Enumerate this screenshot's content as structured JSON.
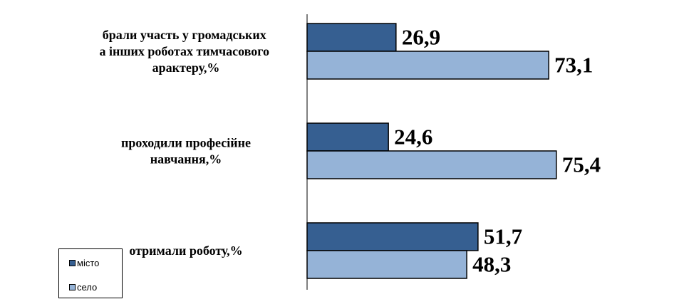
{
  "chart_data": {
    "type": "bar",
    "orientation": "horizontal",
    "categories": [
      "брали участь у громадських та інших роботах тимчасового характеру,%",
      "проходили професійне навчання,%",
      "отримали роботу,%"
    ],
    "series": [
      {
        "name": "місто",
        "values": [
          26.9,
          24.6,
          51.7
        ],
        "labels": [
          "26,9",
          "24,6",
          "51,7"
        ],
        "color": "#365f91"
      },
      {
        "name": "село",
        "values": [
          73.1,
          75.4,
          48.3
        ],
        "labels": [
          "73,1",
          "75,4",
          "48,3"
        ],
        "color": "#95b3d7"
      }
    ],
    "xlim": [
      0,
      100
    ],
    "grid": false,
    "legend_position": "bottom-left"
  }
}
